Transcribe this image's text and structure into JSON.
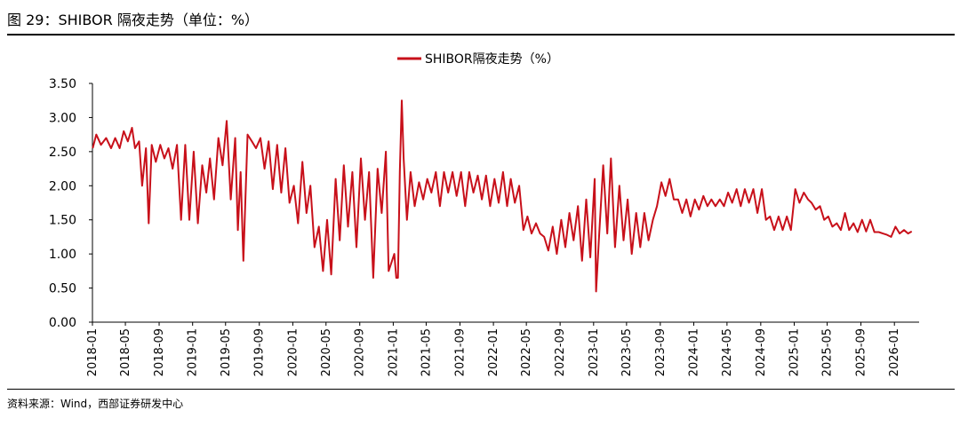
{
  "header": {
    "title": "图 29：SHIBOR 隔夜走势（单位：%）"
  },
  "footer": {
    "source": "资料来源：Wind，西部证券研发中心"
  },
  "chart_data": {
    "type": "line",
    "legend": {
      "position": "top-center"
    },
    "x_ticks": [
      "2018-01",
      "2018-05",
      "2018-09",
      "2019-01",
      "2019-05",
      "2019-09",
      "2020-01",
      "2020-05",
      "2020-09",
      "2021-01",
      "2021-05",
      "2021-09",
      "2022-01",
      "2022-05",
      "2022-09",
      "2023-01",
      "2023-05",
      "2023-09",
      "2024-01",
      "2024-05",
      "2024-09",
      "2025-01",
      "2025-05",
      "2025-09",
      "2026-01"
    ],
    "y_ticks": [
      "0.00",
      "0.50",
      "1.00",
      "1.50",
      "2.00",
      "2.50",
      "3.00",
      "3.50"
    ],
    "ylim": [
      0,
      3.5
    ],
    "grid": false,
    "series": [
      {
        "name": "SHIBOR隔夜走势（%）",
        "color": "#c8101a",
        "points": [
          [
            "2018-01-02",
            2.55
          ],
          [
            "2018-01-15",
            2.75
          ],
          [
            "2018-02-01",
            2.6
          ],
          [
            "2018-02-20",
            2.7
          ],
          [
            "2018-03-10",
            2.55
          ],
          [
            "2018-03-25",
            2.7
          ],
          [
            "2018-04-10",
            2.55
          ],
          [
            "2018-04-25",
            2.8
          ],
          [
            "2018-05-10",
            2.65
          ],
          [
            "2018-05-25",
            2.85
          ],
          [
            "2018-06-05",
            2.55
          ],
          [
            "2018-06-20",
            2.65
          ],
          [
            "2018-07-01",
            2.0
          ],
          [
            "2018-07-15",
            2.55
          ],
          [
            "2018-07-25",
            1.45
          ],
          [
            "2018-08-05",
            2.6
          ],
          [
            "2018-08-20",
            2.35
          ],
          [
            "2018-09-05",
            2.6
          ],
          [
            "2018-09-20",
            2.4
          ],
          [
            "2018-10-05",
            2.55
          ],
          [
            "2018-10-20",
            2.25
          ],
          [
            "2018-11-05",
            2.6
          ],
          [
            "2018-11-20",
            1.5
          ],
          [
            "2018-12-05",
            2.6
          ],
          [
            "2018-12-20",
            1.5
          ],
          [
            "2019-01-05",
            2.5
          ],
          [
            "2019-01-20",
            1.45
          ],
          [
            "2019-02-05",
            2.3
          ],
          [
            "2019-02-20",
            1.9
          ],
          [
            "2019-03-05",
            2.4
          ],
          [
            "2019-03-20",
            1.8
          ],
          [
            "2019-04-05",
            2.7
          ],
          [
            "2019-04-20",
            2.3
          ],
          [
            "2019-05-05",
            2.95
          ],
          [
            "2019-05-20",
            1.8
          ],
          [
            "2019-06-05",
            2.7
          ],
          [
            "2019-06-15",
            1.35
          ],
          [
            "2019-06-25",
            2.2
          ],
          [
            "2019-07-05",
            0.9
          ],
          [
            "2019-07-20",
            2.75
          ],
          [
            "2019-08-05",
            2.65
          ],
          [
            "2019-08-20",
            2.55
          ],
          [
            "2019-09-05",
            2.7
          ],
          [
            "2019-09-20",
            2.25
          ],
          [
            "2019-10-05",
            2.65
          ],
          [
            "2019-10-20",
            1.95
          ],
          [
            "2019-11-05",
            2.6
          ],
          [
            "2019-11-20",
            1.9
          ],
          [
            "2019-12-05",
            2.55
          ],
          [
            "2019-12-20",
            1.75
          ],
          [
            "2020-01-05",
            2.0
          ],
          [
            "2020-01-20",
            1.45
          ],
          [
            "2020-02-05",
            2.35
          ],
          [
            "2020-02-20",
            1.6
          ],
          [
            "2020-03-05",
            2.0
          ],
          [
            "2020-03-20",
            1.1
          ],
          [
            "2020-04-05",
            1.4
          ],
          [
            "2020-04-20",
            0.75
          ],
          [
            "2020-05-05",
            1.5
          ],
          [
            "2020-05-20",
            0.7
          ],
          [
            "2020-06-05",
            2.1
          ],
          [
            "2020-06-20",
            1.2
          ],
          [
            "2020-07-05",
            2.3
          ],
          [
            "2020-07-20",
            1.4
          ],
          [
            "2020-08-05",
            2.2
          ],
          [
            "2020-08-20",
            1.1
          ],
          [
            "2020-09-05",
            2.4
          ],
          [
            "2020-09-20",
            1.5
          ],
          [
            "2020-10-05",
            2.2
          ],
          [
            "2020-10-20",
            0.65
          ],
          [
            "2020-11-05",
            2.25
          ],
          [
            "2020-11-20",
            1.6
          ],
          [
            "2020-12-05",
            2.5
          ],
          [
            "2020-12-15",
            0.75
          ],
          [
            "2021-01-05",
            1.0
          ],
          [
            "2021-01-12",
            0.65
          ],
          [
            "2021-01-18",
            0.65
          ],
          [
            "2021-01-25",
            2.2
          ],
          [
            "2021-02-01",
            3.25
          ],
          [
            "2021-02-08",
            2.4
          ],
          [
            "2021-02-20",
            1.5
          ],
          [
            "2021-03-05",
            2.2
          ],
          [
            "2021-03-20",
            1.7
          ],
          [
            "2021-04-05",
            2.05
          ],
          [
            "2021-04-20",
            1.8
          ],
          [
            "2021-05-05",
            2.1
          ],
          [
            "2021-05-20",
            1.9
          ],
          [
            "2021-06-05",
            2.2
          ],
          [
            "2021-06-20",
            1.7
          ],
          [
            "2021-07-05",
            2.2
          ],
          [
            "2021-07-20",
            1.9
          ],
          [
            "2021-08-05",
            2.2
          ],
          [
            "2021-08-20",
            1.85
          ],
          [
            "2021-09-05",
            2.2
          ],
          [
            "2021-09-20",
            1.7
          ],
          [
            "2021-10-05",
            2.2
          ],
          [
            "2021-10-20",
            1.9
          ],
          [
            "2021-11-05",
            2.15
          ],
          [
            "2021-11-20",
            1.8
          ],
          [
            "2021-12-05",
            2.15
          ],
          [
            "2021-12-20",
            1.7
          ],
          [
            "2022-01-05",
            2.1
          ],
          [
            "2022-01-20",
            1.75
          ],
          [
            "2022-02-05",
            2.2
          ],
          [
            "2022-02-20",
            1.7
          ],
          [
            "2022-03-05",
            2.1
          ],
          [
            "2022-03-20",
            1.75
          ],
          [
            "2022-04-05",
            2.0
          ],
          [
            "2022-04-20",
            1.35
          ],
          [
            "2022-05-05",
            1.55
          ],
          [
            "2022-05-20",
            1.3
          ],
          [
            "2022-06-05",
            1.45
          ],
          [
            "2022-06-20",
            1.3
          ],
          [
            "2022-07-05",
            1.25
          ],
          [
            "2022-07-20",
            1.05
          ],
          [
            "2022-08-05",
            1.4
          ],
          [
            "2022-08-20",
            1.0
          ],
          [
            "2022-09-05",
            1.5
          ],
          [
            "2022-09-20",
            1.1
          ],
          [
            "2022-10-05",
            1.6
          ],
          [
            "2022-10-20",
            1.2
          ],
          [
            "2022-11-05",
            1.7
          ],
          [
            "2022-11-20",
            0.9
          ],
          [
            "2022-12-05",
            1.8
          ],
          [
            "2022-12-20",
            0.95
          ],
          [
            "2023-01-05",
            2.1
          ],
          [
            "2023-01-10",
            0.45
          ],
          [
            "2023-01-20",
            1.2
          ],
          [
            "2023-02-05",
            2.3
          ],
          [
            "2023-02-20",
            1.3
          ],
          [
            "2023-03-05",
            2.4
          ],
          [
            "2023-03-20",
            1.1
          ],
          [
            "2023-04-05",
            2.0
          ],
          [
            "2023-04-20",
            1.2
          ],
          [
            "2023-05-05",
            1.8
          ],
          [
            "2023-05-20",
            1.0
          ],
          [
            "2023-06-05",
            1.6
          ],
          [
            "2023-06-20",
            1.1
          ],
          [
            "2023-07-05",
            1.6
          ],
          [
            "2023-07-20",
            1.2
          ],
          [
            "2023-08-05",
            1.5
          ],
          [
            "2023-08-20",
            1.7
          ],
          [
            "2023-09-05",
            2.05
          ],
          [
            "2023-09-20",
            1.85
          ],
          [
            "2023-10-05",
            2.1
          ],
          [
            "2023-10-20",
            1.8
          ],
          [
            "2023-11-05",
            1.8
          ],
          [
            "2023-11-20",
            1.6
          ],
          [
            "2023-12-05",
            1.8
          ],
          [
            "2023-12-20",
            1.55
          ],
          [
            "2024-01-05",
            1.8
          ],
          [
            "2024-01-20",
            1.65
          ],
          [
            "2024-02-05",
            1.85
          ],
          [
            "2024-02-20",
            1.7
          ],
          [
            "2024-03-05",
            1.8
          ],
          [
            "2024-03-20",
            1.7
          ],
          [
            "2024-04-05",
            1.8
          ],
          [
            "2024-04-20",
            1.7
          ],
          [
            "2024-05-05",
            1.9
          ],
          [
            "2024-05-20",
            1.75
          ],
          [
            "2024-06-05",
            1.95
          ],
          [
            "2024-06-20",
            1.7
          ],
          [
            "2024-07-05",
            1.95
          ],
          [
            "2024-07-20",
            1.75
          ],
          [
            "2024-08-05",
            1.95
          ],
          [
            "2024-08-20",
            1.6
          ],
          [
            "2024-09-05",
            1.95
          ],
          [
            "2024-09-20",
            1.5
          ],
          [
            "2024-10-05",
            1.55
          ],
          [
            "2024-10-20",
            1.35
          ],
          [
            "2024-11-05",
            1.55
          ],
          [
            "2024-11-20",
            1.35
          ],
          [
            "2024-12-05",
            1.55
          ],
          [
            "2024-12-20",
            1.35
          ],
          [
            "2025-01-05",
            1.95
          ],
          [
            "2025-01-20",
            1.75
          ],
          [
            "2025-02-05",
            1.9
          ],
          [
            "2025-02-20",
            1.8
          ],
          [
            "2025-03-05",
            1.75
          ],
          [
            "2025-03-20",
            1.65
          ],
          [
            "2025-04-05",
            1.7
          ],
          [
            "2025-04-20",
            1.5
          ],
          [
            "2025-05-05",
            1.55
          ],
          [
            "2025-05-20",
            1.4
          ],
          [
            "2025-06-05",
            1.45
          ],
          [
            "2025-06-20",
            1.35
          ],
          [
            "2025-07-05",
            1.6
          ],
          [
            "2025-07-20",
            1.35
          ],
          [
            "2025-08-05",
            1.45
          ],
          [
            "2025-08-20",
            1.32
          ],
          [
            "2025-09-05",
            1.5
          ],
          [
            "2025-09-20",
            1.33
          ],
          [
            "2025-10-05",
            1.5
          ],
          [
            "2025-10-20",
            1.32
          ],
          [
            "2025-11-05",
            1.32
          ],
          [
            "2025-11-20",
            1.3
          ],
          [
            "2025-12-05",
            1.28
          ],
          [
            "2025-12-20",
            1.25
          ],
          [
            "2026-01-05",
            1.4
          ],
          [
            "2026-01-20",
            1.3
          ],
          [
            "2026-02-05",
            1.35
          ],
          [
            "2026-02-20",
            1.3
          ],
          [
            "2026-03-05",
            1.33
          ]
        ]
      }
    ]
  }
}
